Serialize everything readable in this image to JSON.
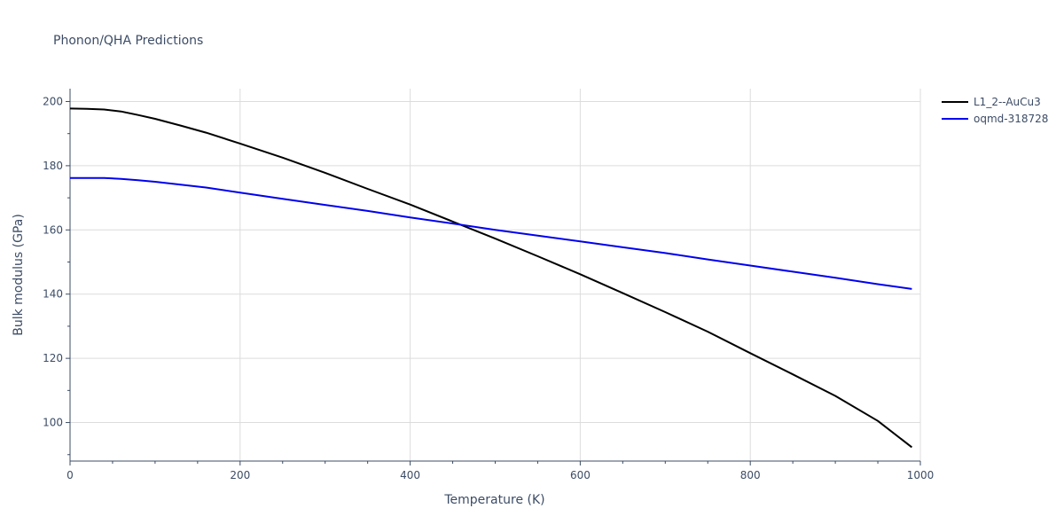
{
  "chart_data": {
    "type": "line",
    "title": "Phonon/QHA Predictions",
    "xlabel": "Temperature (K)",
    "ylabel": "Bulk modulus (GPa)",
    "xlim": [
      0,
      1000
    ],
    "ylim": [
      88,
      204
    ],
    "x_ticks": [
      0,
      200,
      400,
      600,
      800,
      1000
    ],
    "y_ticks": [
      100,
      120,
      140,
      160,
      180,
      200
    ],
    "grid": true,
    "legend_position": "top-right",
    "series": [
      {
        "name": "L1_2--AuCu3",
        "color": "#000000",
        "x": [
          0,
          20,
          40,
          60,
          80,
          100,
          130,
          160,
          200,
          250,
          300,
          350,
          400,
          450,
          500,
          550,
          600,
          650,
          700,
          750,
          800,
          850,
          900,
          950,
          990
        ],
        "y": [
          197.8,
          197.7,
          197.5,
          196.9,
          195.8,
          194.6,
          192.5,
          190.3,
          186.9,
          182.5,
          177.8,
          172.8,
          167.9,
          162.6,
          157.3,
          151.8,
          146.2,
          140.3,
          134.4,
          128.3,
          121.6,
          115.0,
          108.3,
          100.5,
          92.3
        ]
      },
      {
        "name": "oqmd-318728",
        "color": "#0000ee",
        "x": [
          0,
          20,
          40,
          60,
          80,
          100,
          130,
          160,
          200,
          250,
          300,
          350,
          400,
          450,
          500,
          550,
          600,
          650,
          700,
          750,
          800,
          850,
          900,
          950,
          990
        ],
        "y": [
          176.2,
          176.2,
          176.2,
          175.9,
          175.5,
          175.0,
          174.1,
          173.2,
          171.6,
          169.7,
          167.8,
          165.9,
          163.9,
          162.0,
          160.0,
          158.2,
          156.4,
          154.6,
          152.8,
          150.8,
          148.9,
          147.0,
          145.1,
          143.1,
          141.6
        ]
      }
    ]
  }
}
